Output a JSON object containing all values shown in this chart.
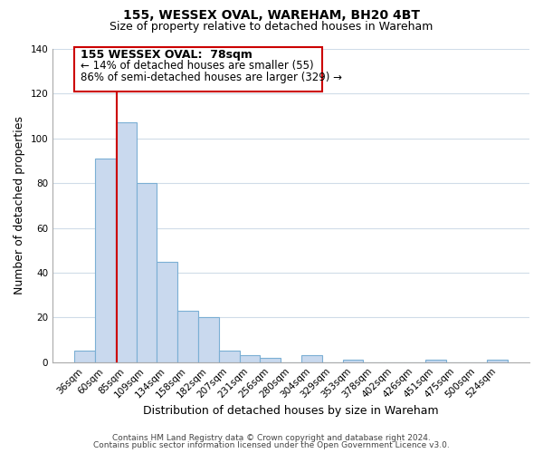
{
  "title": "155, WESSEX OVAL, WAREHAM, BH20 4BT",
  "subtitle": "Size of property relative to detached houses in Wareham",
  "xlabel": "Distribution of detached houses by size in Wareham",
  "ylabel": "Number of detached properties",
  "bar_labels": [
    "36sqm",
    "60sqm",
    "85sqm",
    "109sqm",
    "134sqm",
    "158sqm",
    "182sqm",
    "207sqm",
    "231sqm",
    "256sqm",
    "280sqm",
    "304sqm",
    "329sqm",
    "353sqm",
    "378sqm",
    "402sqm",
    "426sqm",
    "451sqm",
    "475sqm",
    "500sqm",
    "524sqm"
  ],
  "bar_values": [
    5,
    91,
    107,
    80,
    45,
    23,
    20,
    5,
    3,
    2,
    0,
    3,
    0,
    1,
    0,
    0,
    0,
    1,
    0,
    0,
    1
  ],
  "bar_fill_color": "#c9d9ee",
  "bar_edge_color": "#7bafd4",
  "ylim": [
    0,
    140
  ],
  "yticks": [
    0,
    20,
    40,
    60,
    80,
    100,
    120,
    140
  ],
  "vline_color": "#cc0000",
  "vline_x_index": 1.575,
  "annotation_title": "155 WESSEX OVAL:  78sqm",
  "annotation_line1": "← 14% of detached houses are smaller (55)",
  "annotation_line2": "86% of semi-detached houses are larger (329) →",
  "footer_line1": "Contains HM Land Registry data © Crown copyright and database right 2024.",
  "footer_line2": "Contains public sector information licensed under the Open Government Licence v3.0.",
  "bg_color": "#ffffff",
  "grid_color": "#d0dce8",
  "title_fontsize": 10,
  "subtitle_fontsize": 9,
  "axis_label_fontsize": 9,
  "tick_fontsize": 7.5,
  "annotation_title_fontsize": 9,
  "annotation_text_fontsize": 8.5,
  "footer_fontsize": 6.5
}
